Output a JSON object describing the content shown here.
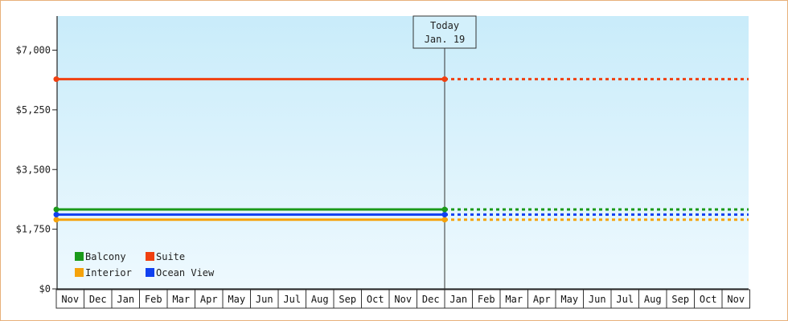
{
  "chart_data": {
    "type": "line",
    "ylim": [
      0,
      8000
    ],
    "y_ticks": [
      0,
      1750,
      3500,
      5250,
      7000
    ],
    "y_tick_labels": [
      "$0",
      "$1,750",
      "$3,500",
      "$5,250",
      "$7,000"
    ],
    "months": [
      "Nov",
      "Dec",
      "Jan",
      "Feb",
      "Mar",
      "Apr",
      "May",
      "Jun",
      "Jul",
      "Aug",
      "Sep",
      "Oct",
      "Nov",
      "Dec",
      "Jan",
      "Feb",
      "Mar",
      "Apr",
      "May",
      "Jun",
      "Jul",
      "Aug",
      "Sep",
      "Oct",
      "Nov"
    ],
    "today_index": 14,
    "today_label": [
      "Today",
      "Jan. 19"
    ],
    "series": [
      {
        "name": "Balcony",
        "color": "#1a9a1a",
        "values": [
          2330,
          2330
        ]
      },
      {
        "name": "Suite",
        "color": "#f04010",
        "values": [
          6150,
          6150
        ]
      },
      {
        "name": "Interior",
        "color": "#f5a20a",
        "values": [
          2030,
          2030
        ]
      },
      {
        "name": "Ocean View",
        "color": "#1040f0",
        "values": [
          2180,
          2180
        ]
      }
    ],
    "grid": false,
    "legend_position": "bottom-left",
    "background": {
      "top": "#c9ecfa",
      "bottom": "#eef9fe"
    }
  }
}
